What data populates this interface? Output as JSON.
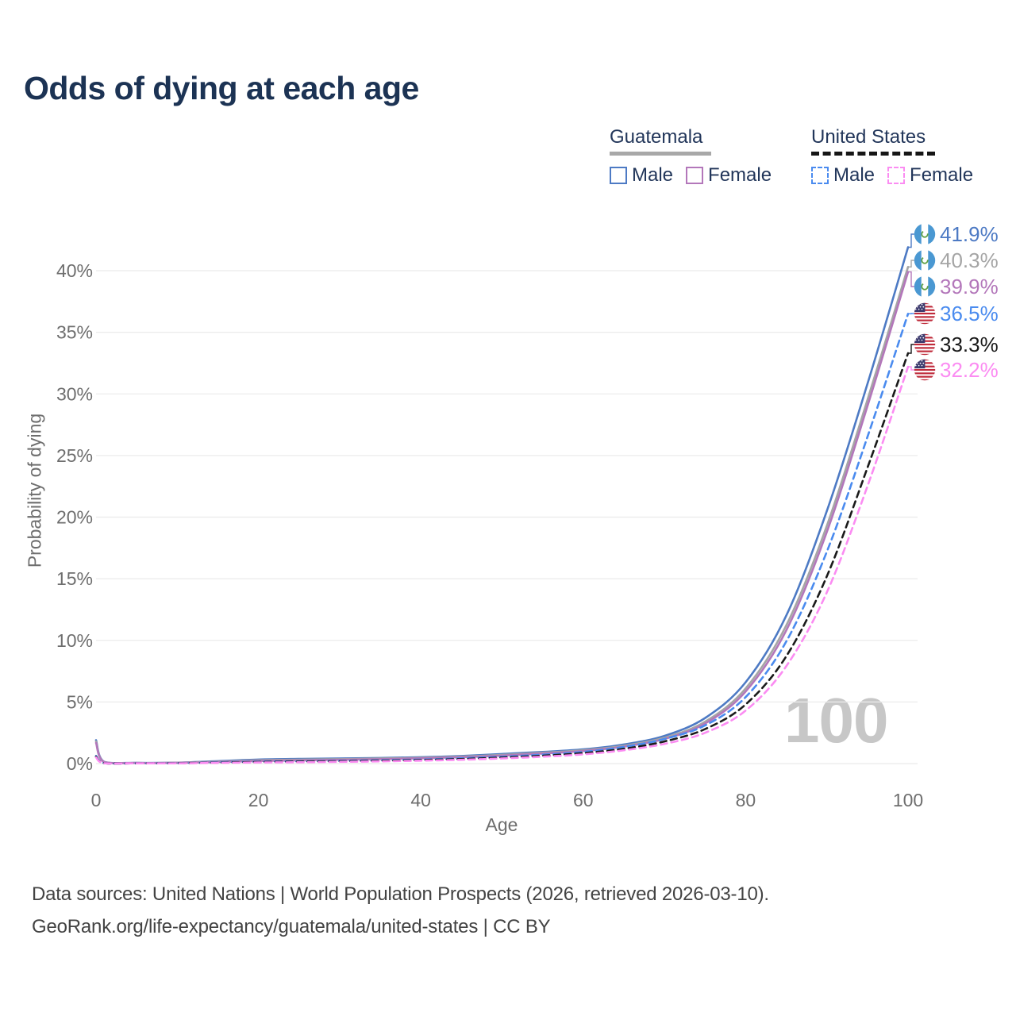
{
  "title": "Odds of dying at each age",
  "legend": {
    "groups": [
      {
        "name": "Guatemala",
        "line_style": "solid",
        "underline_color": "#a8a8a8",
        "items": [
          {
            "label": "Male",
            "color": "#4d7ac4"
          },
          {
            "label": "Female",
            "color": "#b377ba"
          }
        ]
      },
      {
        "name": "United States",
        "line_style": "dashed",
        "underline_color": "#161616",
        "items": [
          {
            "label": "Male",
            "color": "#4a8bef"
          },
          {
            "label": "Female",
            "color": "#fb8cf2"
          }
        ]
      }
    ]
  },
  "chart_data": {
    "type": "line",
    "title": "Odds of dying at each age",
    "xlabel": "Age",
    "ylabel": "Probability of dying",
    "xlim": [
      0,
      100
    ],
    "ylim": [
      0,
      43
    ],
    "xticks": [
      0,
      20,
      40,
      60,
      80,
      100
    ],
    "yticks": [
      "0%",
      "5%",
      "10%",
      "15%",
      "20%",
      "25%",
      "30%",
      "35%",
      "40%"
    ],
    "grid": "horizontal",
    "x_ages": [
      0,
      1,
      5,
      10,
      15,
      20,
      25,
      30,
      35,
      40,
      45,
      50,
      55,
      60,
      65,
      70,
      75,
      80,
      85,
      90,
      95,
      100
    ],
    "series": [
      {
        "name": "Guatemala Male",
        "country": "Guatemala",
        "sex": "Male",
        "style": "solid",
        "color": "#4d7ac4",
        "values": [
          1.9,
          0.15,
          0.06,
          0.08,
          0.2,
          0.33,
          0.38,
          0.42,
          0.46,
          0.52,
          0.62,
          0.78,
          0.95,
          1.15,
          1.55,
          2.25,
          3.7,
          6.6,
          12.0,
          20.5,
          30.8,
          41.9
        ]
      },
      {
        "name": "Guatemala Both sexes",
        "country": "Guatemala",
        "sex": "Both",
        "style": "solid",
        "color": "#a5a5a5",
        "values": [
          1.8,
          0.13,
          0.05,
          0.07,
          0.16,
          0.27,
          0.32,
          0.36,
          0.41,
          0.47,
          0.57,
          0.71,
          0.88,
          1.08,
          1.45,
          2.1,
          3.4,
          6.1,
          11.2,
          19.3,
          29.5,
          40.3
        ]
      },
      {
        "name": "Guatemala Female",
        "country": "Guatemala",
        "sex": "Female",
        "style": "solid",
        "color": "#b377ba",
        "values": [
          1.68,
          0.12,
          0.05,
          0.06,
          0.13,
          0.21,
          0.26,
          0.31,
          0.36,
          0.43,
          0.52,
          0.65,
          0.82,
          1.02,
          1.38,
          2.0,
          3.25,
          5.85,
          10.8,
          18.8,
          29.0,
          39.9
        ]
      },
      {
        "name": "United States Male",
        "country": "United States",
        "sex": "Male",
        "style": "dashed",
        "color": "#4a8bef",
        "values": [
          0.62,
          0.04,
          0.02,
          0.03,
          0.1,
          0.16,
          0.19,
          0.22,
          0.27,
          0.33,
          0.43,
          0.56,
          0.72,
          0.95,
          1.35,
          2.0,
          3.1,
          5.4,
          9.9,
          17.2,
          26.5,
          36.5
        ]
      },
      {
        "name": "United States Both sexes",
        "country": "United States",
        "sex": "Both",
        "style": "dashed",
        "color": "#1a1a1a",
        "values": [
          0.56,
          0.04,
          0.02,
          0.03,
          0.08,
          0.13,
          0.16,
          0.19,
          0.23,
          0.29,
          0.37,
          0.49,
          0.64,
          0.85,
          1.2,
          1.8,
          2.8,
          4.8,
          8.7,
          15.2,
          24.0,
          33.3
        ]
      },
      {
        "name": "United States Female",
        "country": "United States",
        "sex": "Female",
        "style": "dashed",
        "color": "#fb8cf2",
        "values": [
          0.5,
          0.03,
          0.02,
          0.02,
          0.06,
          0.09,
          0.11,
          0.14,
          0.18,
          0.24,
          0.31,
          0.42,
          0.56,
          0.75,
          1.08,
          1.6,
          2.5,
          4.3,
          7.9,
          13.9,
          22.5,
          32.2
        ]
      }
    ],
    "end_labels": [
      {
        "text": "41.9%",
        "value": 41.9,
        "color": "#4d7ac4",
        "flag": "guatemala-flag-icon"
      },
      {
        "text": "40.3%",
        "value": 40.3,
        "color": "#a5a5a5",
        "flag": "guatemala-flag-icon"
      },
      {
        "text": "39.9%",
        "value": 39.9,
        "color": "#b377ba",
        "flag": "guatemala-flag-icon"
      },
      {
        "text": "36.5%",
        "value": 36.5,
        "color": "#4a8bef",
        "flag": "us-flag-icon"
      },
      {
        "text": "33.3%",
        "value": 33.3,
        "color": "#1a1a1a",
        "flag": "us-flag-icon"
      },
      {
        "text": "32.2%",
        "value": 32.2,
        "color": "#fb8cf2",
        "flag": "us-flag-icon"
      }
    ],
    "watermark": "100"
  },
  "footer": {
    "line1": "Data sources: United Nations | World Population Prospects (2026, retrieved 2026-03-10).",
    "line2": "GeoRank.org/life-expectancy/guatemala/united-states | CC BY"
  }
}
